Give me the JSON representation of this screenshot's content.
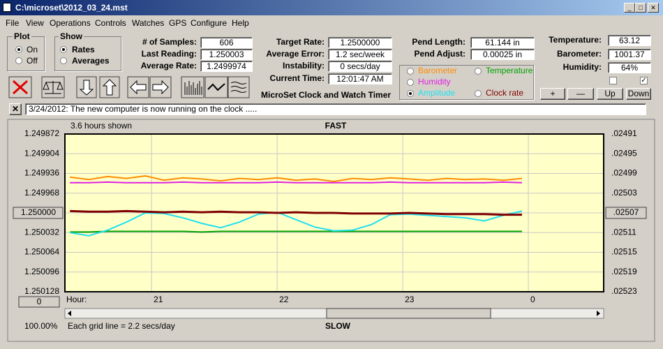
{
  "window": {
    "title": "C:\\microset\\2012_03_24.mst"
  },
  "menu": [
    "File",
    "View",
    "Operations",
    "Controls",
    "Watches",
    "GPS",
    "Configure",
    "Help"
  ],
  "plot_group": {
    "label": "Plot",
    "options": [
      "On",
      "Off"
    ]
  },
  "show_group": {
    "label": "Show",
    "options": [
      "Rates",
      "Averages"
    ]
  },
  "column1": [
    {
      "label": "# of Samples:",
      "value": "606"
    },
    {
      "label": "Last Reading:",
      "value": "1.250003"
    },
    {
      "label": "Average Rate:",
      "value": "1.2499974"
    }
  ],
  "column2": [
    {
      "label": "Target Rate:",
      "value": "1.2500000"
    },
    {
      "label": "Average Error:",
      "value": "1.2 sec/week"
    },
    {
      "label": "Instability:",
      "value": "0 secs/day"
    },
    {
      "label": "Current Time:",
      "value": "12:01:47 AM"
    }
  ],
  "app_name": "MicroSet Clock and Watch Timer",
  "column3": [
    {
      "label": "Pend Length:",
      "value": "61.144 in"
    },
    {
      "label": "Pend Adjust:",
      "value": "0.00025 in"
    }
  ],
  "column4": [
    {
      "label": "Temperature:",
      "value": "63.12"
    },
    {
      "label": "Barometer:",
      "value": "1001.37"
    },
    {
      "label": "Humidity:",
      "value": "64%"
    }
  ],
  "buttons": [
    "+",
    "—",
    "Up",
    "Down"
  ],
  "message": "3/24/2012: The new computer is now running on the clock .....",
  "chart_data": {
    "type": "line",
    "hours_shown": "3.6 hours shown",
    "top_label": "FAST",
    "bottom_label": "SLOW",
    "x_label": "Hour:",
    "grid_note": "Each grid line = 2.2 secs/day",
    "zoom": "100.00%",
    "offset_button": "0",
    "grid": true,
    "selected_series": 3,
    "x": [
      20.35,
      20.5,
      20.65,
      20.8,
      20.95,
      21.1,
      21.25,
      21.4,
      21.55,
      21.7,
      21.85,
      22.0,
      22.15,
      22.3,
      22.45,
      22.6,
      22.75,
      22.9,
      23.05,
      23.2,
      23.35,
      23.5,
      23.65,
      23.8,
      23.95
    ],
    "xlim": [
      20.31,
      24.6
    ],
    "xticks": [
      21,
      22,
      23,
      {
        "value": 24,
        "label": "0"
      }
    ],
    "ylim": [
      1.250128,
      1.249872
    ],
    "yticks": [
      1.249872,
      1.249904,
      1.249936,
      1.249968,
      {
        "value": 1.25,
        "label": "1.250000"
      },
      1.250032,
      1.250064,
      1.250096,
      1.250128
    ],
    "y2lim": [
      0.02523,
      0.02491
    ],
    "y2ticks": [
      {
        "value": 0.02491,
        "label": ".02491"
      },
      {
        "value": 0.02495,
        "label": ".02495"
      },
      {
        "value": 0.02499,
        "label": ".02499"
      },
      {
        "value": 0.02503,
        "label": ".02503"
      },
      {
        "value": 0.02507,
        "label": ".02507"
      },
      {
        "value": 0.02511,
        "label": ".02511"
      },
      {
        "value": 0.02515,
        "label": ".02515"
      },
      {
        "value": 0.02519,
        "label": ".02519"
      },
      {
        "value": 0.02523,
        "label": ".02523"
      }
    ],
    "series": [
      {
        "name": "Barometer",
        "color": "#ff8c00",
        "values": [
          1.249942,
          1.249946,
          1.249941,
          1.249944,
          1.24994,
          1.249947,
          1.249943,
          1.249945,
          1.249948,
          1.249944,
          1.249946,
          1.249943,
          1.249947,
          1.249945,
          1.249949,
          1.249944,
          1.249946,
          1.249943,
          1.249945,
          1.249947,
          1.249944,
          1.249946,
          1.249945,
          1.249947,
          1.249944
        ]
      },
      {
        "name": "Temperature",
        "color": "#00a000",
        "values": [
          1.250031,
          1.250031,
          1.25003,
          1.25003,
          1.25003,
          1.25003,
          1.25003,
          1.250031,
          1.25003,
          1.25003,
          1.25003,
          1.25003,
          1.25003,
          1.25003,
          1.25003,
          1.25003,
          1.25003,
          1.25003,
          1.25003,
          1.25003,
          1.25003,
          1.25003,
          1.25003,
          1.25003,
          1.25003
        ]
      },
      {
        "name": "Humidity",
        "color": "#e020e0",
        "values": [
          1.249951,
          1.249951,
          1.24995,
          1.249951,
          1.249951,
          1.249951,
          1.24995,
          1.249951,
          1.249951,
          1.249951,
          1.249951,
          1.24995,
          1.249951,
          1.249951,
          1.249951,
          1.249951,
          1.249951,
          1.24995,
          1.249951,
          1.249951,
          1.249951,
          1.249951,
          1.249951,
          1.24995,
          1.249951
        ]
      },
      {
        "name": "Amplitude",
        "color": "#20e0f0",
        "values": [
          1.250032,
          1.250037,
          1.250028,
          1.250015,
          1.25,
          1.250001,
          1.250008,
          1.250017,
          1.250024,
          1.250015,
          1.250002,
          1.249999,
          1.250011,
          1.250023,
          1.250029,
          1.250028,
          1.250019,
          1.250003,
          1.250002,
          1.250004,
          1.250006,
          1.250008,
          1.250013,
          1.250004,
          1.249997
        ]
      },
      {
        "name": "Clock rate",
        "color": "#800000",
        "values": [
          1.249997,
          1.249998,
          1.249998,
          1.249997,
          1.249998,
          1.249999,
          1.249998,
          1.249999,
          1.249998,
          1.249999,
          1.249999,
          1.25,
          1.249999,
          1.25,
          1.25,
          1.250001,
          1.250001,
          1.250001,
          1.25,
          1.250001,
          1.250002,
          1.250002,
          1.250002,
          1.250003,
          1.250003
        ]
      }
    ]
  }
}
